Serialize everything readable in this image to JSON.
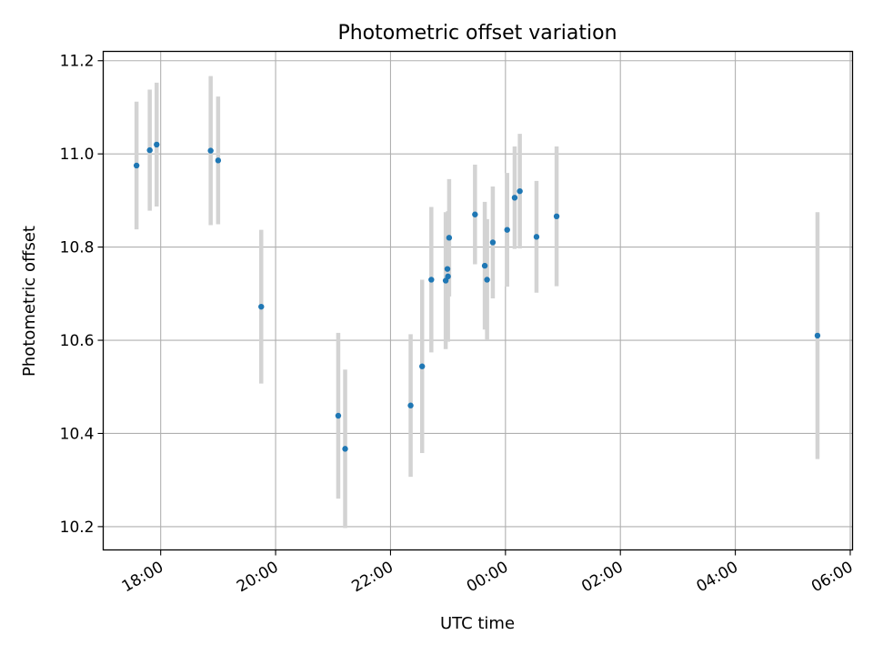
{
  "chart_data": {
    "type": "scatter",
    "title": "Photometric offset variation",
    "xlabel": "UTC time",
    "ylabel": "Photometric offset",
    "x_unit": "hours (UTC, continuous across midnight)",
    "xlim": [
      17.0,
      30.04
    ],
    "ylim": [
      10.15,
      11.22
    ],
    "x_ticks": [
      {
        "value": 18,
        "label": "18:00"
      },
      {
        "value": 20,
        "label": "20:00"
      },
      {
        "value": 22,
        "label": "22:00"
      },
      {
        "value": 24,
        "label": "00:00"
      },
      {
        "value": 26,
        "label": "02:00"
      },
      {
        "value": 28,
        "label": "04:00"
      },
      {
        "value": 30,
        "label": "06:00"
      }
    ],
    "y_ticks": [
      {
        "value": 10.2,
        "label": "10.2"
      },
      {
        "value": 10.4,
        "label": "10.4"
      },
      {
        "value": 10.6,
        "label": "10.6"
      },
      {
        "value": 10.8,
        "label": "10.8"
      },
      {
        "value": 11.0,
        "label": "11.0"
      },
      {
        "value": 11.2,
        "label": "11.2"
      }
    ],
    "grid": true,
    "marker_color": "#1f77b4",
    "errorbar_color": "#d3d3d3",
    "points": [
      {
        "x": 17.58,
        "y": 10.975,
        "err": 0.137
      },
      {
        "x": 17.81,
        "y": 11.008,
        "err": 0.13
      },
      {
        "x": 17.93,
        "y": 11.02,
        "err": 0.133
      },
      {
        "x": 18.87,
        "y": 11.007,
        "err": 0.16
      },
      {
        "x": 19.0,
        "y": 10.986,
        "err": 0.137
      },
      {
        "x": 19.75,
        "y": 10.672,
        "err": 0.165
      },
      {
        "x": 21.09,
        "y": 10.438,
        "err": 0.178
      },
      {
        "x": 21.21,
        "y": 10.367,
        "err": 0.17
      },
      {
        "x": 22.35,
        "y": 10.46,
        "err": 0.153
      },
      {
        "x": 22.55,
        "y": 10.544,
        "err": 0.186
      },
      {
        "x": 22.71,
        "y": 10.73,
        "err": 0.156
      },
      {
        "x": 22.96,
        "y": 10.728,
        "err": 0.147
      },
      {
        "x": 22.99,
        "y": 10.753,
        "err": 0.12
      },
      {
        "x": 23.0,
        "y": 10.737,
        "err": 0.14
      },
      {
        "x": 23.02,
        "y": 10.82,
        "err": 0.126
      },
      {
        "x": 23.47,
        "y": 10.87,
        "err": 0.107
      },
      {
        "x": 23.64,
        "y": 10.76,
        "err": 0.137
      },
      {
        "x": 23.68,
        "y": 10.73,
        "err": 0.13
      },
      {
        "x": 23.78,
        "y": 10.81,
        "err": 0.12
      },
      {
        "x": 24.03,
        "y": 10.837,
        "err": 0.122
      },
      {
        "x": 24.16,
        "y": 10.906,
        "err": 0.11
      },
      {
        "x": 24.25,
        "y": 10.92,
        "err": 0.123
      },
      {
        "x": 24.54,
        "y": 10.822,
        "err": 0.12
      },
      {
        "x": 24.89,
        "y": 10.866,
        "err": 0.15
      },
      {
        "x": 29.43,
        "y": 10.61,
        "err": 0.265
      }
    ]
  }
}
